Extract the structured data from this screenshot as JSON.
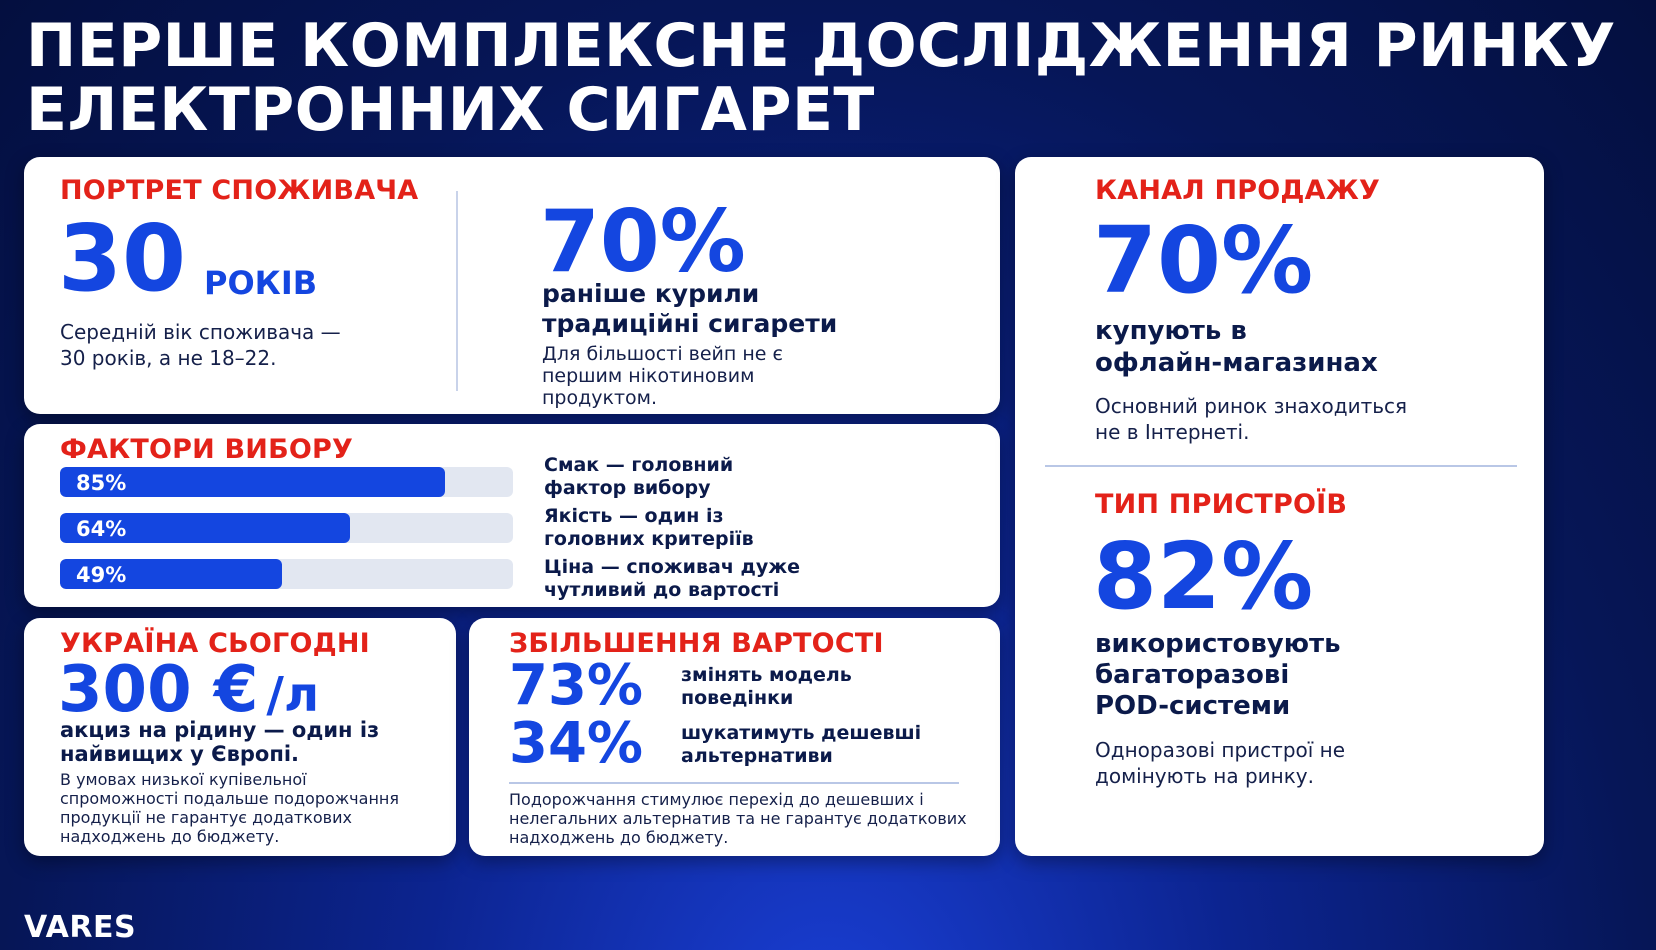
{
  "title": {
    "line1": "ПЕРШЕ КОМПЛЕКСНЕ ДОСЛІДЖЕННЯ РИНКУ",
    "line2": "ЕЛЕКТРОННИХ СИГАРЕТ"
  },
  "portrait": {
    "label": "ПОРТРЕТ СПОЖИВАЧА",
    "age_value": "30",
    "age_unit": "РОКІВ",
    "age_note_1": "Середній вік споживача —",
    "age_note_2": "30 років, а не 18–22.",
    "smoked_value": "70%",
    "smoked_text_1": "раніше курили",
    "smoked_text_2": "традиційні сигарети",
    "smoked_note_1": "Для більшості вейп не є",
    "smoked_note_2": "першим нікотиновим",
    "smoked_note_3": "продуктом."
  },
  "factors": {
    "label": "ФАКТОРИ ВИБОРУ",
    "items": [
      {
        "value": 85,
        "value_label": "85%",
        "text_1": "Смак — головний",
        "text_2": "фактор вибору"
      },
      {
        "value": 64,
        "value_label": "64%",
        "text_1": "Якість — один із",
        "text_2": "головних критеріїв"
      },
      {
        "value": 49,
        "value_label": "49%",
        "text_1": "Ціна — споживач дуже",
        "text_2": "чутливий до вартості"
      }
    ]
  },
  "ukraine": {
    "label": "УКРАЇНА СЬОГОДНІ",
    "value": "300 €",
    "unit": "/л",
    "text_1": "акциз на рідину — один із",
    "text_2": "найвищих у Європі.",
    "note_1": "В умовах низької купівельної",
    "note_2": "спроможності подальше подорожчання",
    "note_3": "продукції не гарантує додаткових",
    "note_4": "надходжень до бюджету."
  },
  "price_increase": {
    "label": "ЗБІЛЬШЕННЯ ВАРТОСТІ",
    "items": [
      {
        "value": "73%",
        "text_1": "змінять модель",
        "text_2": "поведінки"
      },
      {
        "value": "34%",
        "text_1": "шукатимуть дешевші",
        "text_2": "альтернативи"
      }
    ],
    "note_1": "Подорожчання стимулює перехід до дешевших і",
    "note_2": "нелегальних альтернатив та не гарантує додаткових",
    "note_3": "надходжень до бюджету."
  },
  "sales_channel": {
    "label": "КАНАЛ ПРОДАЖУ",
    "value": "70%",
    "text_1": "купують в",
    "text_2": "офлайн-магазинах",
    "note_1": "Основний ринок знаходиться",
    "note_2": "не в Інтернеті."
  },
  "devices": {
    "label": "ТИП ПРИСТРОЇВ",
    "value": "82%",
    "text_1": "використовують",
    "text_2": "багаторазові",
    "text_3": "POD-системи",
    "note_1": "Одноразові пристрої не",
    "note_2": "домінують на ринку."
  },
  "logo": "VARES",
  "colors": {
    "accent_blue": "#1446e0",
    "accent_red": "#e32219",
    "background": "#061657"
  }
}
